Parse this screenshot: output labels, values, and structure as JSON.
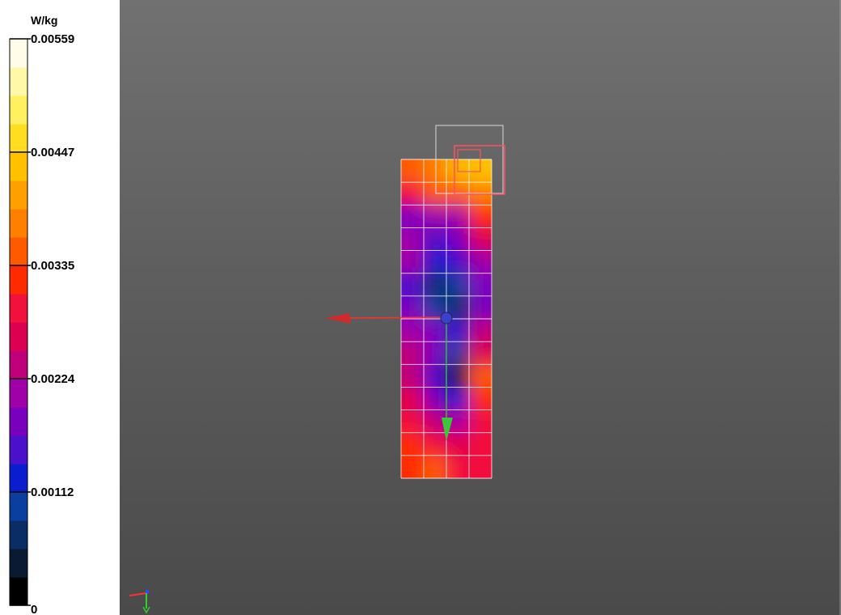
{
  "legend": {
    "unit": "W/kg",
    "max": 0.00559,
    "tick_labels": [
      "0.00559",
      "0.00447",
      "0.00335",
      "0.00224",
      "0.00112",
      "0"
    ],
    "colors": [
      "#000000",
      "#0b1a33",
      "#0a2d66",
      "#0a3fa0",
      "#0a1ed0",
      "#4a10cc",
      "#7a00c0",
      "#a000a8",
      "#c0007a",
      "#de0050",
      "#f2103c",
      "#ff2a00",
      "#ff5a00",
      "#ff8000",
      "#ffa000",
      "#ffc000",
      "#ffdd20",
      "#fff060",
      "#fff8a8",
      "#fffdea"
    ]
  },
  "scene": {
    "background_colors": [
      "#717171",
      "#4a4a4a"
    ],
    "grid_cols": 4,
    "grid_rows": 14,
    "measurement_grid": [
      [
        0.62,
        0.7,
        0.75,
        0.78
      ],
      [
        0.55,
        0.62,
        0.65,
        0.68
      ],
      [
        0.3,
        0.35,
        0.38,
        0.58
      ],
      [
        0.35,
        0.28,
        0.3,
        0.48
      ],
      [
        0.38,
        0.22,
        0.25,
        0.36
      ],
      [
        0.25,
        0.12,
        0.15,
        0.32
      ],
      [
        0.32,
        0.18,
        0.08,
        0.3
      ],
      [
        0.38,
        0.3,
        0.22,
        0.4
      ],
      [
        0.4,
        0.32,
        0.15,
        0.45
      ],
      [
        0.42,
        0.25,
        0.05,
        0.62
      ],
      [
        0.48,
        0.3,
        0.22,
        0.58
      ],
      [
        0.55,
        0.4,
        0.38,
        0.52
      ],
      [
        0.6,
        0.5,
        0.48,
        0.55
      ],
      [
        0.58,
        0.62,
        0.55,
        0.5
      ]
    ],
    "hotspot_cells": [
      [
        0,
        2
      ],
      [
        0,
        3
      ]
    ]
  }
}
